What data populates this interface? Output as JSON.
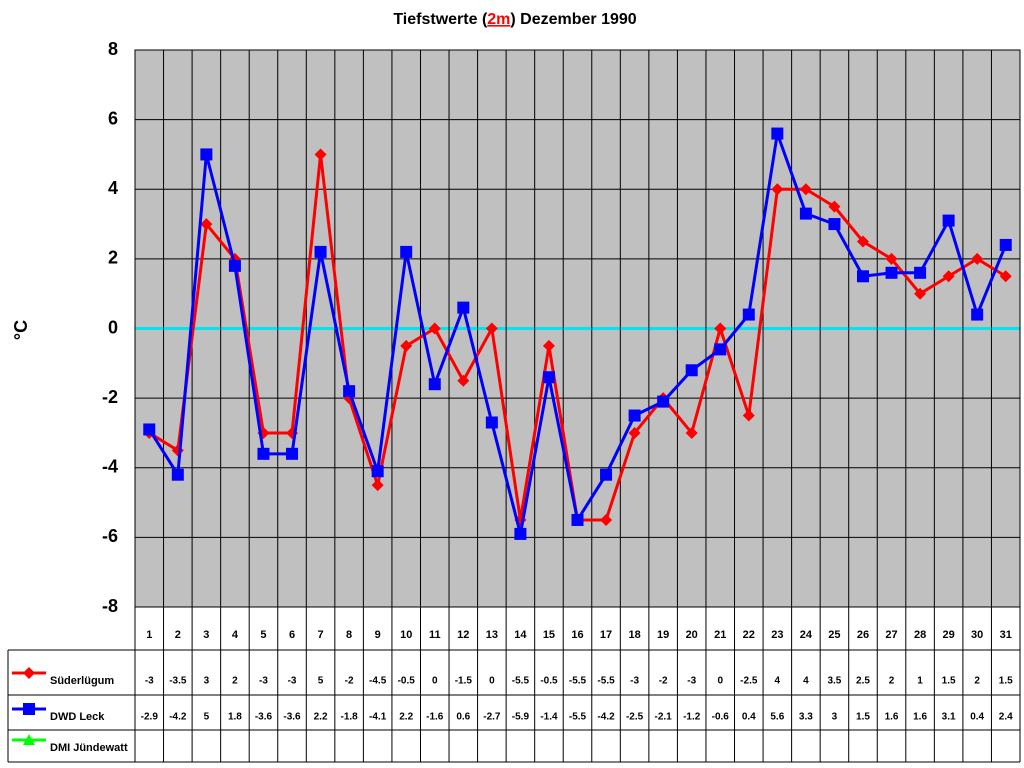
{
  "chart_data": {
    "type": "line",
    "title_prefix": "Tiefstwerte (",
    "title_highlight": "2m",
    "title_suffix": ") Dezember 1990",
    "y_label": "°C",
    "categories": [
      "1",
      "2",
      "3",
      "4",
      "5",
      "6",
      "7",
      "8",
      "9",
      "10",
      "11",
      "12",
      "13",
      "14",
      "15",
      "16",
      "17",
      "18",
      "19",
      "20",
      "21",
      "22",
      "23",
      "24",
      "25",
      "26",
      "27",
      "28",
      "29",
      "30",
      "31"
    ],
    "series": [
      {
        "name": "Süderlügum",
        "color": "#ff0000",
        "marker": "diamond",
        "values": [
          -3,
          -3.5,
          3,
          2,
          -3,
          -3,
          5,
          -2,
          -4.5,
          -0.5,
          0,
          -1.5,
          0,
          -5.5,
          -0.5,
          -5.5,
          -5.5,
          -3,
          -2,
          -3,
          0,
          -2.5,
          4,
          4,
          3.5,
          2.5,
          2,
          1,
          1.5,
          2,
          1.5
        ]
      },
      {
        "name": "DWD Leck",
        "color": "#0000ff",
        "marker": "square",
        "values": [
          -2.9,
          -4.2,
          5,
          1.8,
          -3.6,
          -3.6,
          2.2,
          -1.8,
          -4.1,
          2.2,
          -1.6,
          0.6,
          -2.7,
          -5.9,
          -1.4,
          -5.5,
          -4.2,
          -2.5,
          -2.1,
          -1.2,
          -0.6,
          0.4,
          5.6,
          3.3,
          3,
          1.5,
          1.6,
          1.6,
          3.1,
          0.4,
          2.4
        ]
      },
      {
        "name": "DMI Jündewatt",
        "color": "#00ff00",
        "marker": "triangle",
        "values": [
          null,
          null,
          null,
          null,
          null,
          null,
          null,
          null,
          null,
          null,
          null,
          null,
          null,
          null,
          null,
          null,
          null,
          null,
          null,
          null,
          null,
          null,
          null,
          null,
          null,
          null,
          null,
          null,
          null,
          null,
          null
        ]
      }
    ],
    "ylim": [
      -8,
      8
    ],
    "yticks": [
      -8,
      -6,
      -4,
      -2,
      0,
      2,
      4,
      6,
      8
    ],
    "grid": true,
    "zero_line_color": "#00e5ee"
  }
}
